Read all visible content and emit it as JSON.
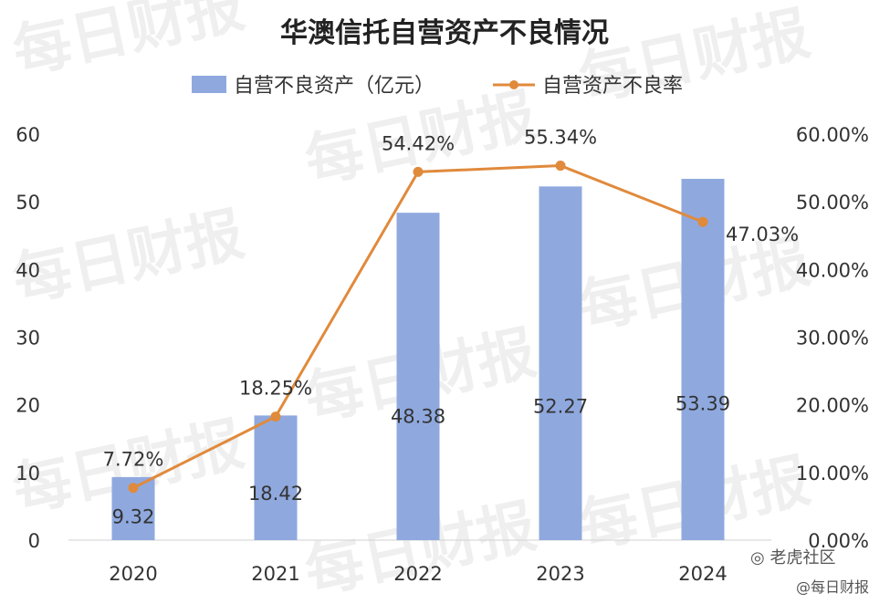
{
  "chart_data": {
    "type": "bar+line",
    "title": "华澳信托自营资产不良情况",
    "categories": [
      "2020",
      "2021",
      "2022",
      "2023",
      "2024"
    ],
    "series": [
      {
        "name": "自营不良资产（亿元）",
        "type": "bar",
        "axis": "left",
        "color": "#8fa9df",
        "values": [
          9.32,
          18.42,
          48.38,
          52.27,
          53.39
        ],
        "labels": [
          "9.32",
          "18.42",
          "48.38",
          "52.27",
          "53.39"
        ]
      },
      {
        "name": "自营资产不良率",
        "type": "line",
        "axis": "right",
        "color": "#e08a3c",
        "values": [
          7.72,
          18.25,
          54.42,
          55.34,
          47.03
        ],
        "labels": [
          "7.72%",
          "18.25%",
          "54.42%",
          "55.34%",
          "47.03%"
        ]
      }
    ],
    "y_left": {
      "range": [
        0,
        60
      ],
      "ticks": [
        "0",
        "10",
        "20",
        "30",
        "40",
        "50",
        "60"
      ]
    },
    "y_right": {
      "range": [
        0,
        60
      ],
      "ticks": [
        "0.00%",
        "10.00%",
        "20.00%",
        "30.00%",
        "40.00%",
        "50.00%",
        "60.00%"
      ]
    },
    "grid": false,
    "legend_position": "top"
  },
  "watermark": {
    "text": "每日财报"
  },
  "footer": {
    "brand1": "老虎社区",
    "brand2": "@每日财报"
  }
}
